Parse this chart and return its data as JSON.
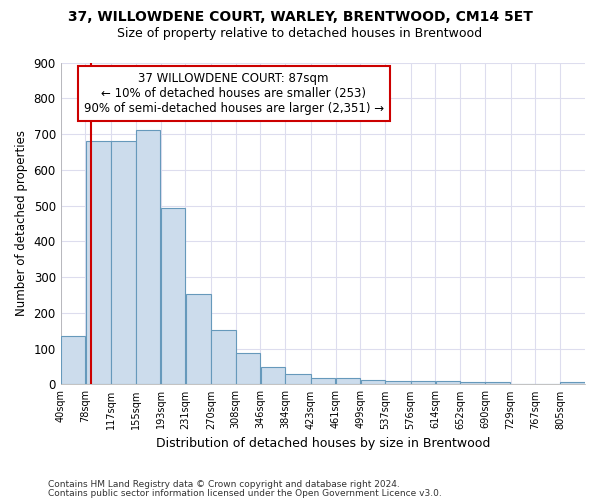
{
  "title1": "37, WILLOWDENE COURT, WARLEY, BRENTWOOD, CM14 5ET",
  "title2": "Size of property relative to detached houses in Brentwood",
  "xlabel": "Distribution of detached houses by size in Brentwood",
  "ylabel": "Number of detached properties",
  "footnote1": "Contains HM Land Registry data © Crown copyright and database right 2024.",
  "footnote2": "Contains public sector information licensed under the Open Government Licence v3.0.",
  "bar_labels": [
    "40sqm",
    "78sqm",
    "117sqm",
    "155sqm",
    "193sqm",
    "231sqm",
    "270sqm",
    "308sqm",
    "346sqm",
    "384sqm",
    "423sqm",
    "461sqm",
    "499sqm",
    "537sqm",
    "576sqm",
    "614sqm",
    "652sqm",
    "690sqm",
    "729sqm",
    "767sqm",
    "805sqm"
  ],
  "bar_values": [
    135,
    680,
    680,
    710,
    493,
    252,
    152,
    88,
    50,
    30,
    18,
    18,
    11,
    10,
    10,
    10,
    7,
    8,
    0,
    0,
    8
  ],
  "bar_color": "#ccdcec",
  "bar_edge_color": "#6699bb",
  "ylim": [
    0,
    900
  ],
  "yticks": [
    0,
    100,
    200,
    300,
    400,
    500,
    600,
    700,
    800,
    900
  ],
  "property_label": "37 WILLOWDENE COURT: 87sqm",
  "annotation_line1": "← 10% of detached houses are smaller (253)",
  "annotation_line2": "90% of semi-detached houses are larger (2,351) →",
  "vline_x": 87,
  "box_color": "#cc0000",
  "background_color": "#ffffff",
  "grid_color": "#ddddee"
}
